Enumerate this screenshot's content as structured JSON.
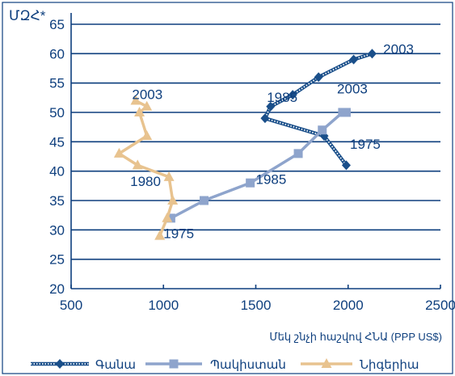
{
  "chart_data": {
    "type": "line",
    "ylabel": "ՄԶՀ*",
    "xlabel": "Մեկ շնչի հաշվով ՀՆԱ (PPP US$)",
    "xlim": [
      500,
      2500
    ],
    "ylim": [
      20,
      65
    ],
    "x_ticks": [
      "500",
      "1000",
      "1500",
      "2000",
      "2500"
    ],
    "y_ticks": [
      "20",
      "25",
      "30",
      "35",
      "40",
      "45",
      "50",
      "55",
      "60",
      "65"
    ],
    "grid": "horizontal",
    "legend_position": "bottom",
    "series": [
      {
        "name": "Գանա",
        "color": "#1a4f8a",
        "marker": "diamond",
        "style": "dotted-band",
        "points": [
          {
            "x": 1990,
            "y": 41
          },
          {
            "x": 1870,
            "y": 46
          },
          {
            "x": 1550,
            "y": 49
          },
          {
            "x": 1580,
            "y": 51
          },
          {
            "x": 1700,
            "y": 53
          },
          {
            "x": 1840,
            "y": 56
          },
          {
            "x": 2030,
            "y": 59
          },
          {
            "x": 2130,
            "y": 60
          }
        ]
      },
      {
        "name": "Պակիստան",
        "color": "#8ea4cc",
        "marker": "square",
        "style": "solid",
        "points": [
          {
            "x": 1040,
            "y": 32
          },
          {
            "x": 1220,
            "y": 35
          },
          {
            "x": 1470,
            "y": 38
          },
          {
            "x": 1730,
            "y": 43
          },
          {
            "x": 1860,
            "y": 47
          },
          {
            "x": 1970,
            "y": 50
          },
          {
            "x": 1990,
            "y": 50
          }
        ]
      },
      {
        "name": "Նիգերիա",
        "color": "#e8c38f",
        "marker": "triangle",
        "style": "solid",
        "points": [
          {
            "x": 980,
            "y": 29
          },
          {
            "x": 1020,
            "y": 32
          },
          {
            "x": 1050,
            "y": 35
          },
          {
            "x": 1030,
            "y": 39
          },
          {
            "x": 860,
            "y": 41
          },
          {
            "x": 760,
            "y": 43
          },
          {
            "x": 910,
            "y": 46
          },
          {
            "x": 870,
            "y": 50
          },
          {
            "x": 910,
            "y": 51
          },
          {
            "x": 850,
            "y": 52
          }
        ]
      }
    ],
    "annotations": [
      {
        "text": "2003",
        "x": 2190,
        "y": 60
      },
      {
        "text": "1985",
        "x": 1560,
        "y": 51.8
      },
      {
        "text": "2003",
        "x": 1940,
        "y": 53.2
      },
      {
        "text": "1975",
        "x": 2010,
        "y": 43.8
      },
      {
        "text": "1985",
        "x": 1500,
        "y": 37.8
      },
      {
        "text": "2003",
        "x": 830,
        "y": 52.3
      },
      {
        "text": "1980",
        "x": 820,
        "y": 37.5
      },
      {
        "text": "1975",
        "x": 1000,
        "y": 28.6
      }
    ]
  }
}
